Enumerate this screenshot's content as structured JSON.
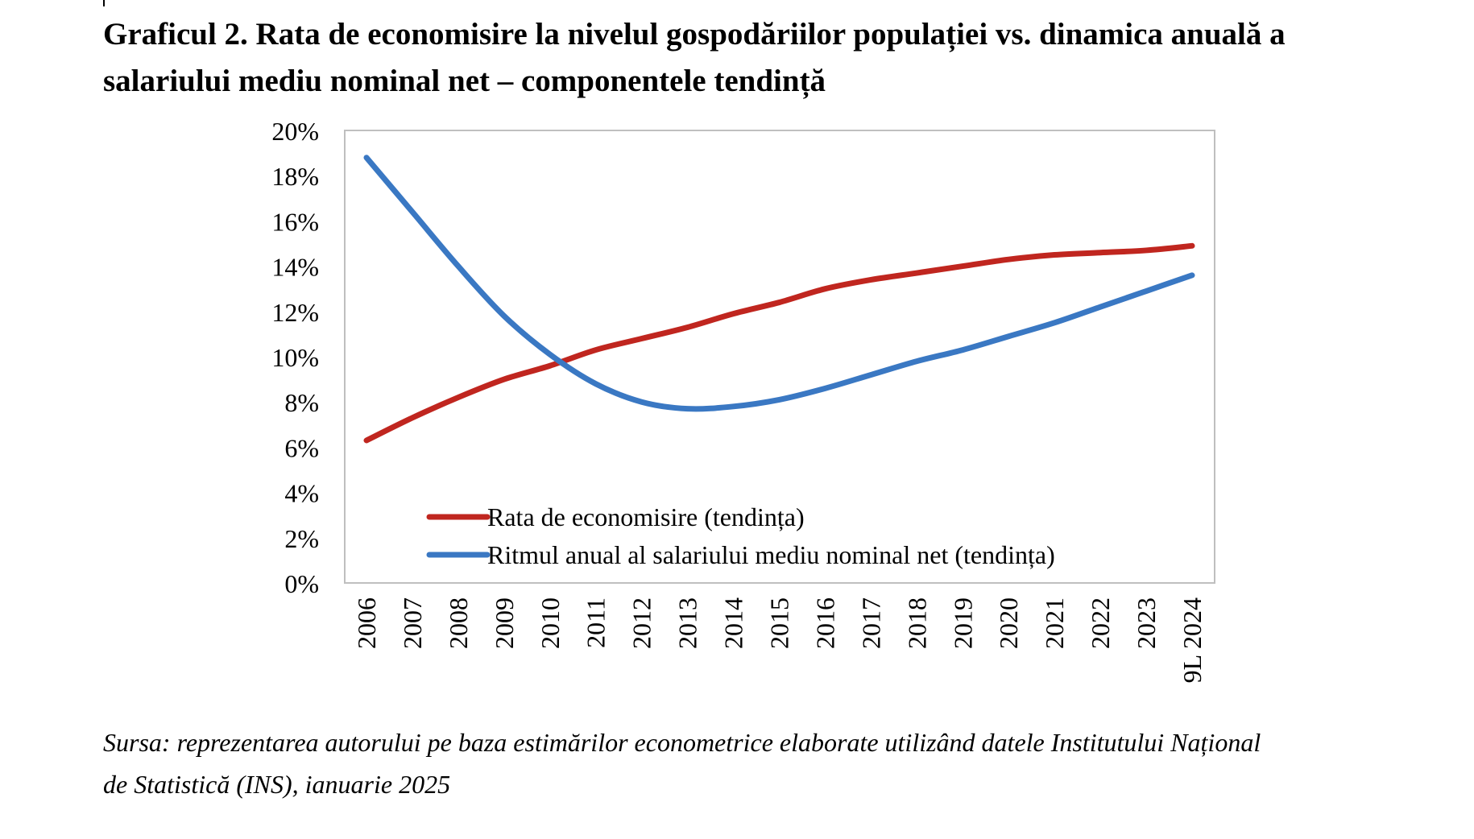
{
  "title_lines": [
    "Graficul 2. Rata de economisire la nivelul gospodăriilor populației vs. dinamica anuală a",
    "salariului mediu nominal net – componentele tendință"
  ],
  "source_lines": [
    "Sursa: reprezentarea autorului pe baza estimărilor econometrice elaborate utilizând datele Institutului Național",
    "de Statistică (INS), ianuarie 2025"
  ],
  "chart_data": {
    "type": "line",
    "categories": [
      "2006",
      "2007",
      "2008",
      "2009",
      "2010",
      "2011",
      "2012",
      "2013",
      "2014",
      "2015",
      "2016",
      "2017",
      "2018",
      "2019",
      "2020",
      "2021",
      "2022",
      "2023",
      "9L 2024"
    ],
    "ylim": [
      0,
      0.2
    ],
    "y_ticks": [
      "0%",
      "2%",
      "4%",
      "6%",
      "8%",
      "10%",
      "12%",
      "14%",
      "16%",
      "18%",
      "20%"
    ],
    "grid": false,
    "legend_position": "bottom-left inside plot",
    "series": [
      {
        "name": "Rata de economisire (tendința)",
        "color": "#C0261F",
        "values": [
          0.063,
          0.073,
          0.082,
          0.09,
          0.096,
          0.103,
          0.108,
          0.113,
          0.119,
          0.124,
          0.13,
          0.134,
          0.137,
          0.14,
          0.143,
          0.145,
          0.146,
          0.147,
          0.149
        ]
      },
      {
        "name": "Ritmul anual al salariului mediu nominal net (tendința)",
        "color": "#3A78C3",
        "values": [
          0.188,
          0.164,
          0.14,
          0.118,
          0.101,
          0.088,
          0.08,
          0.077,
          0.078,
          0.081,
          0.086,
          0.092,
          0.098,
          0.103,
          0.109,
          0.115,
          0.122,
          0.129,
          0.136
        ]
      }
    ]
  }
}
